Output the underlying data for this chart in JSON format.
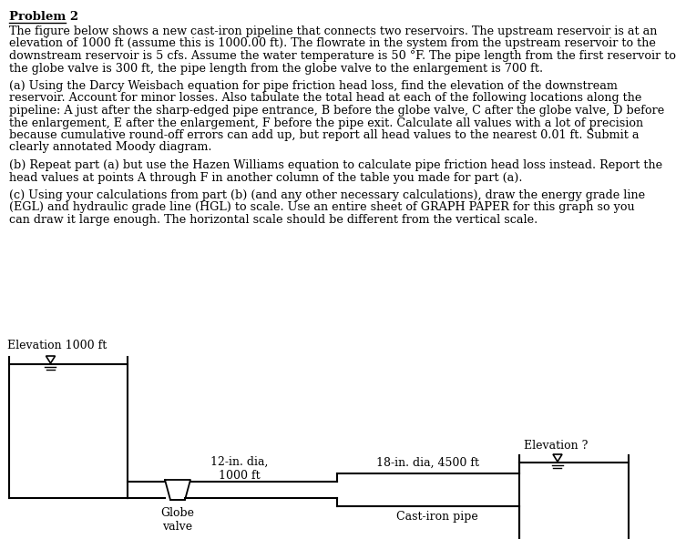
{
  "title": "Problem 2",
  "body_text": [
    "The figure below shows a new cast-iron pipeline that connects two reservoirs. The upstream reservoir is at an",
    "elevation of 1000 ft (assume this is 1000.00 ft). The flowrate in the system from the upstream reservoir to the",
    "downstream reservoir is 5 cfs. Assume the water temperature is 50 °F. The pipe length from the first reservoir to",
    "the globe valve is 300 ft, the pipe length from the globe valve to the enlargement is 700 ft."
  ],
  "para_a": [
    "(a) Using the Darcy Weisbach equation for pipe friction head loss, find the elevation of the downstream",
    "reservoir. Account for minor losses. Also tabulate the total head at each of the following locations along the",
    "pipeline: A just after the sharp-edged pipe entrance, B before the globe valve, C after the globe valve, D before",
    "the enlargement, E after the enlargement, F before the pipe exit. Calculate all values with a lot of precision",
    "because cumulative round-off errors can add up, but report all head values to the nearest 0.01 ft. Submit a",
    "clearly annotated Moody diagram."
  ],
  "para_b": [
    "(b) Repeat part (a) but use the Hazen Williams equation to calculate pipe friction head loss instead. Report the",
    "head values at points A through F in another column of the table you made for part (a)."
  ],
  "para_c": [
    "(c) Using your calculations from part (b) (and any other necessary calculations), draw the energy grade line",
    "(EGL) and hydraulic grade line (HGL) to scale. Use an entire sheet of GRAPH PAPER for this graph so you",
    "can draw it large enough. The horizontal scale should be different from the vertical scale."
  ],
  "upstream_label": "Elevation 1000 ft",
  "downstream_label": "Elevation ?",
  "pipe1_label": "12-in. dia,\n1000 ft",
  "pipe2_label": "18-in. dia, 4500 ft",
  "valve_label": "Globe\nvalve",
  "pipe_material_label": "Cast-iron pipe",
  "bg_color": "#ffffff"
}
